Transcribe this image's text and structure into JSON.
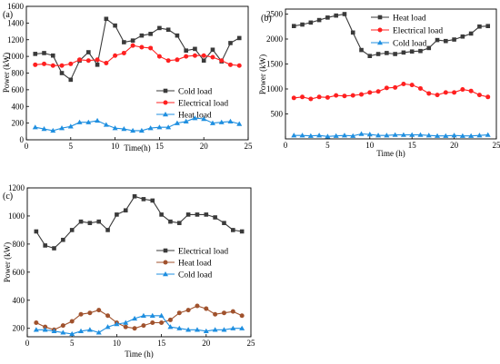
{
  "chart_data": [
    {
      "panel_label": "(a)",
      "type": "line",
      "xlabel": "Time(h)",
      "ylabel": "Power (kW)",
      "xlim": [
        0,
        25
      ],
      "ylim": [
        0,
        1600
      ],
      "xticks": [
        0,
        5,
        10,
        15,
        20,
        25
      ],
      "yticks": [
        0,
        200,
        400,
        600,
        800,
        1000,
        1200,
        1400,
        1600
      ],
      "legend_position": "center-right",
      "x": [
        1,
        2,
        3,
        4,
        5,
        6,
        7,
        8,
        9,
        10,
        11,
        12,
        13,
        14,
        15,
        16,
        17,
        18,
        19,
        20,
        21,
        22,
        23,
        24
      ],
      "series": [
        {
          "name": "Cold load",
          "color": "#3a3a3a",
          "marker": "square",
          "values": [
            1030,
            1040,
            1010,
            800,
            720,
            950,
            1050,
            900,
            1450,
            1370,
            1170,
            1190,
            1250,
            1270,
            1340,
            1320,
            1250,
            1070,
            1090,
            950,
            1080,
            940,
            1160,
            1220
          ]
        },
        {
          "name": "Electrical load",
          "color": "#ff2020",
          "marker": "circle",
          "values": [
            900,
            910,
            890,
            890,
            910,
            960,
            950,
            960,
            920,
            1010,
            1040,
            1130,
            1110,
            1100,
            1000,
            950,
            960,
            1000,
            1010,
            1010,
            990,
            950,
            900,
            890
          ]
        },
        {
          "name": "Heat load",
          "color": "#1f8fe0",
          "marker": "triangle",
          "values": [
            150,
            130,
            110,
            140,
            160,
            210,
            210,
            230,
            180,
            140,
            130,
            110,
            110,
            140,
            150,
            150,
            200,
            220,
            260,
            250,
            200,
            210,
            220,
            190
          ]
        }
      ]
    },
    {
      "panel_label": "(b)",
      "type": "line",
      "xlabel": "Time (h)",
      "ylabel": "Power (kW)",
      "xlim": [
        0,
        25
      ],
      "ylim": [
        0,
        2600
      ],
      "xticks": [
        0,
        5,
        10,
        15,
        20,
        25
      ],
      "yticks": [
        500,
        1000,
        1500,
        2000,
        2500
      ],
      "legend_position": "top-right",
      "x": [
        1,
        2,
        3,
        4,
        5,
        6,
        7,
        8,
        9,
        10,
        11,
        12,
        13,
        14,
        15,
        16,
        17,
        18,
        19,
        20,
        21,
        22,
        23,
        24
      ],
      "series": [
        {
          "name": "Heat load",
          "color": "#3a3a3a",
          "marker": "square",
          "values": [
            2260,
            2290,
            2330,
            2380,
            2430,
            2470,
            2500,
            2130,
            1780,
            1660,
            1700,
            1720,
            1700,
            1730,
            1750,
            1760,
            1820,
            1980,
            1960,
            1990,
            2050,
            2110,
            2250,
            2260
          ]
        },
        {
          "name": "Electrical load",
          "color": "#ff2020",
          "marker": "circle",
          "values": [
            820,
            840,
            800,
            840,
            830,
            870,
            860,
            870,
            890,
            930,
            950,
            1020,
            1030,
            1100,
            1080,
            1010,
            910,
            880,
            930,
            930,
            990,
            960,
            880,
            840
          ]
        },
        {
          "name": "Cold load",
          "color": "#1f8fe0",
          "marker": "triangle",
          "values": [
            70,
            70,
            60,
            70,
            50,
            60,
            70,
            60,
            100,
            90,
            70,
            70,
            80,
            80,
            80,
            80,
            70,
            60,
            60,
            70,
            60,
            60,
            70,
            80
          ]
        }
      ]
    },
    {
      "panel_label": "(c)",
      "type": "line",
      "xlabel": "Time (h)",
      "ylabel": "Power (kW)",
      "xlim": [
        0,
        25
      ],
      "ylim": [
        140,
        1200
      ],
      "xticks": [
        0,
        5,
        10,
        15,
        20,
        25
      ],
      "yticks": [
        200,
        400,
        600,
        800,
        1000,
        1200
      ],
      "legend_position": "center-right",
      "x": [
        1,
        2,
        3,
        4,
        5,
        6,
        7,
        8,
        9,
        10,
        11,
        12,
        13,
        14,
        15,
        16,
        17,
        18,
        19,
        20,
        21,
        22,
        23,
        24
      ],
      "series": [
        {
          "name": "Electrical load",
          "color": "#3a3a3a",
          "marker": "square",
          "values": [
            890,
            790,
            770,
            830,
            900,
            960,
            950,
            960,
            900,
            1010,
            1040,
            1140,
            1120,
            1110,
            1010,
            960,
            950,
            1010,
            1010,
            1010,
            990,
            950,
            900,
            890
          ]
        },
        {
          "name": "Heat load",
          "color": "#a0522d",
          "marker": "circle",
          "values": [
            240,
            210,
            190,
            220,
            250,
            300,
            310,
            330,
            290,
            240,
            210,
            200,
            220,
            240,
            240,
            260,
            310,
            330,
            360,
            340,
            300,
            310,
            320,
            290
          ]
        },
        {
          "name": "Cold load",
          "color": "#1f8fe0",
          "marker": "triangle",
          "values": [
            190,
            190,
            180,
            170,
            160,
            180,
            190,
            170,
            210,
            230,
            240,
            270,
            290,
            290,
            290,
            210,
            200,
            190,
            190,
            180,
            190,
            190,
            200,
            200
          ]
        }
      ]
    }
  ]
}
